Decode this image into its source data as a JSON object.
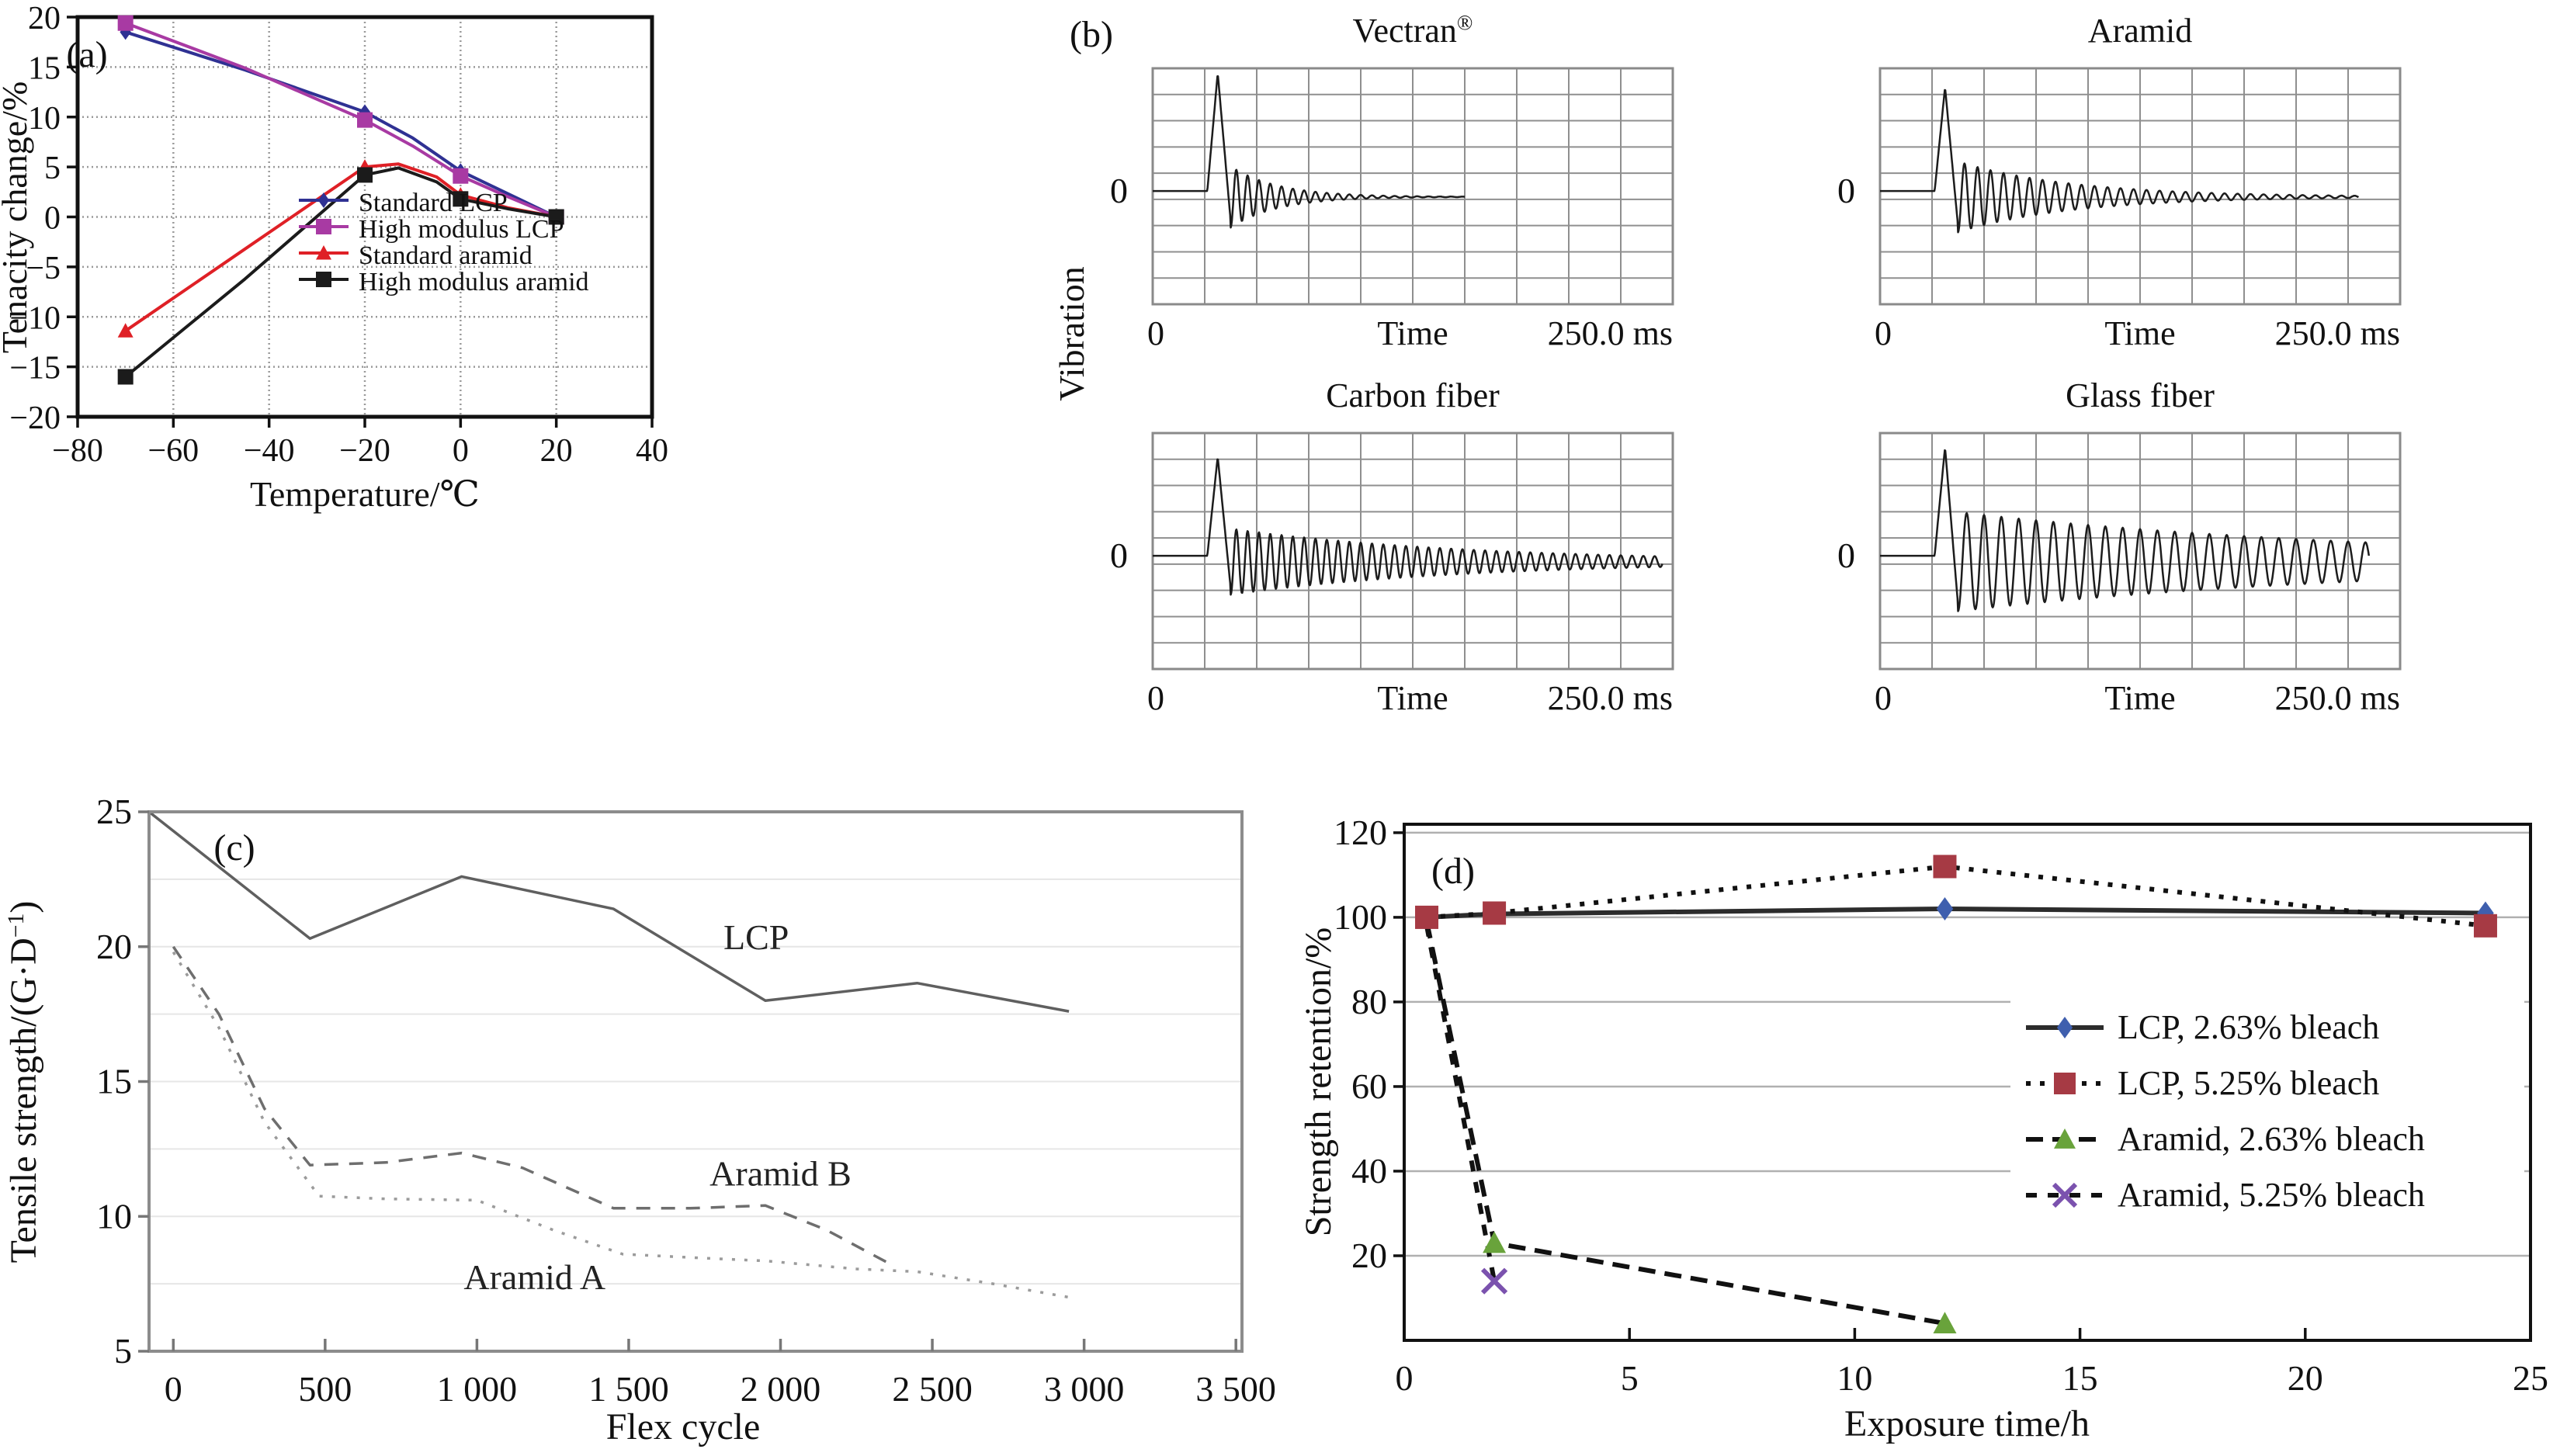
{
  "figure": {
    "background": "#ffffff"
  },
  "chart_data": [
    {
      "id": "a",
      "type": "line",
      "panel_label": "(a)",
      "xlabel": "Temperature/℃",
      "ylabel": "Tenacity change/%",
      "xlim": [
        -80,
        40
      ],
      "ylim": [
        -20,
        20
      ],
      "xticks": {
        "values": [
          -80,
          -60,
          -40,
          -20,
          0,
          20,
          40
        ],
        "labels": [
          "−80",
          "−60",
          "−40",
          "−20",
          "0",
          "20",
          "40"
        ]
      },
      "yticks": {
        "values": [
          20,
          15,
          10,
          5,
          0,
          -5,
          -10,
          -15,
          -20
        ],
        "labels": [
          "20",
          "15",
          "10",
          "5",
          "0",
          "−5",
          "−10",
          "−15",
          "−20"
        ]
      },
      "grid": "both",
      "legend_position": "inside-bottom-right",
      "series": [
        {
          "name": "Standard LCP",
          "color": "#2f3193",
          "marker": "diamond",
          "dash": "solid",
          "line": [
            [
              -70,
              18.5
            ],
            [
              -45,
              14.7
            ],
            [
              -20,
              10.5
            ],
            [
              -10,
              7.9
            ],
            [
              0,
              4.6
            ],
            [
              10,
              2.3
            ],
            [
              20,
              0
            ]
          ],
          "markers": [
            [
              -70,
              18.5
            ],
            [
              -20,
              10.5
            ],
            [
              0,
              4.6
            ],
            [
              20,
              0
            ]
          ]
        },
        {
          "name": "High modulus LCP",
          "color": "#a83aa3",
          "marker": "square",
          "dash": "solid",
          "line": [
            [
              -70,
              19.4
            ],
            [
              -45,
              14.9
            ],
            [
              -20,
              9.7
            ],
            [
              -10,
              7.1
            ],
            [
              0,
              4.1
            ],
            [
              10,
              2.0
            ],
            [
              20,
              0
            ]
          ],
          "markers": [
            [
              -70,
              19.4
            ],
            [
              -20,
              9.7
            ],
            [
              0,
              4.1
            ],
            [
              20,
              0
            ]
          ]
        },
        {
          "name": "Standard aramid",
          "color": "#df2026",
          "marker": "triangle",
          "dash": "solid",
          "line": [
            [
              -70,
              -11.4
            ],
            [
              -45,
              -3.2
            ],
            [
              -20,
              5.0
            ],
            [
              -13,
              5.3
            ],
            [
              -5,
              4.0
            ],
            [
              0,
              2.2
            ],
            [
              10,
              0.9
            ],
            [
              20,
              0
            ]
          ],
          "markers": [
            [
              -70,
              -11.4
            ],
            [
              -20,
              5.0
            ],
            [
              0,
              2.2
            ],
            [
              20,
              0
            ]
          ]
        },
        {
          "name": "High modulus aramid",
          "color": "#1b1b1b",
          "marker": "square",
          "dash": "solid",
          "line": [
            [
              -70,
              -16.0
            ],
            [
              -45,
              -6.2
            ],
            [
              -20,
              4.2
            ],
            [
              -13,
              4.9
            ],
            [
              -5,
              3.5
            ],
            [
              0,
              1.8
            ],
            [
              10,
              0.8
            ],
            [
              20,
              0
            ]
          ],
          "markers": [
            [
              -70,
              -16.0
            ],
            [
              -20,
              4.2
            ],
            [
              0,
              1.8
            ],
            [
              20,
              0
            ]
          ]
        }
      ]
    },
    {
      "id": "b",
      "type": "oscilloscope",
      "panel_label": "(b)",
      "ylabel": "Vibration",
      "time_start_label": "0",
      "time_label": "Time",
      "time_end_label": "250.0 ms",
      "zero_label": "0",
      "grid": {
        "cols": 10,
        "rows": 9
      },
      "subplots": [
        {
          "title": "Vectran",
          "title_sup": "®",
          "waveform": {
            "spike": 0.5,
            "amp": 0.13,
            "freq": 46,
            "decay": 11,
            "end": 0.6
          }
        },
        {
          "title": "Aramid",
          "title_sup": "",
          "waveform": {
            "spike": 0.44,
            "amp": 0.15,
            "freq": 40,
            "decay": 4.5,
            "end": 0.92
          }
        },
        {
          "title": "Carbon fiber",
          "title_sup": "",
          "waveform": {
            "spike": 0.42,
            "amp": 0.14,
            "freq": 46,
            "decay": 2.2,
            "end": 0.98
          }
        },
        {
          "title": "Glass fiber",
          "title_sup": "",
          "waveform": {
            "spike": 0.46,
            "amp": 0.21,
            "freq": 30,
            "decay": 1.2,
            "end": 0.94
          }
        }
      ]
    },
    {
      "id": "c",
      "type": "line",
      "panel_label": "(c)",
      "xlabel": "Flex cycle",
      "ylabel_pre": "Tensile strength/(G·D",
      "ylabel_sup": "−1",
      "ylabel_post": ")",
      "xlim": [
        -80,
        3520
      ],
      "ylim": [
        5,
        25
      ],
      "xticks": {
        "values": [
          0,
          500,
          1000,
          1500,
          2000,
          2500,
          3000,
          3500
        ],
        "labels": [
          "0",
          "500",
          "1 000",
          "1 500",
          "2 000",
          "2 500",
          "3 000",
          "3 500"
        ]
      },
      "yticks": {
        "values": [
          25,
          20,
          15,
          10,
          5
        ],
        "labels": [
          "25",
          "20",
          "15",
          "10",
          "5"
        ]
      },
      "minor_hgrid": [
        7.5,
        10,
        12.5,
        15,
        17.5,
        20,
        22.5
      ],
      "series": [
        {
          "name": "LCP",
          "color": "#5f5f5f",
          "marker": "none",
          "dash": "solid",
          "line": [
            [
              -80,
              25
            ],
            [
              450,
              20.3
            ],
            [
              950,
              22.6
            ],
            [
              1450,
              21.4
            ],
            [
              1950,
              18.0
            ],
            [
              2450,
              18.65
            ],
            [
              2950,
              17.6
            ]
          ],
          "markers": []
        },
        {
          "name": "Aramid B",
          "color": "#6e6e6e",
          "marker": "none",
          "dash": "18 14",
          "line": [
            [
              0,
              20
            ],
            [
              150,
              17.5
            ],
            [
              300,
              14.0
            ],
            [
              450,
              11.9
            ],
            [
              700,
              12.0
            ],
            [
              950,
              12.35
            ],
            [
              1150,
              11.8
            ],
            [
              1450,
              10.3
            ],
            [
              1700,
              10.3
            ],
            [
              1950,
              10.4
            ],
            [
              2150,
              9.5
            ],
            [
              2350,
              8.3
            ]
          ],
          "markers": []
        },
        {
          "name": "Aramid A",
          "color": "#9b9b9b",
          "marker": "none",
          "dash": "4 12",
          "line": [
            [
              0,
              19.8
            ],
            [
              150,
              17.0
            ],
            [
              300,
              13.5
            ],
            [
              480,
              10.75
            ],
            [
              700,
              10.65
            ],
            [
              1000,
              10.6
            ],
            [
              1250,
              9.5
            ],
            [
              1480,
              8.6
            ],
            [
              1750,
              8.45
            ],
            [
              1950,
              8.35
            ],
            [
              2250,
              8.05
            ],
            [
              2450,
              7.95
            ],
            [
              2700,
              7.5
            ],
            [
              2950,
              7.0
            ]
          ],
          "markers": []
        }
      ],
      "annotations": [
        {
          "text": "LCP",
          "x": 1920,
          "y": 19.9
        },
        {
          "text": "Aramid B",
          "x": 2000,
          "y": 11.15
        },
        {
          "text": "Aramid A",
          "x": 1190,
          "y": 7.3
        }
      ]
    },
    {
      "id": "d",
      "type": "line",
      "panel_label": "(d)",
      "xlabel": "Exposure time/h",
      "ylabel": "Strength retention/%",
      "xlim": [
        0,
        25
      ],
      "ylim": [
        0,
        122
      ],
      "xticks": {
        "values": [
          0,
          5,
          10,
          15,
          20,
          25
        ],
        "labels": [
          "0",
          "5",
          "10",
          "15",
          "20",
          "25"
        ]
      },
      "yticks": {
        "values": [
          120,
          100,
          80,
          60,
          40,
          20
        ],
        "labels": [
          "120",
          "100",
          "80",
          "60",
          "40",
          "20"
        ]
      },
      "grid": "horizontal",
      "legend_position": "inside-right",
      "series": [
        {
          "name": "LCP, 2.63% bleach",
          "color": "#2c2c2c",
          "marker": "diamond",
          "marker_color": "#3f5fae",
          "dash": "solid",
          "line": [
            [
              0.5,
              100
            ],
            [
              2,
              100.8
            ],
            [
              12,
              102
            ],
            [
              24,
              101
            ]
          ],
          "markers": [
            [
              0.5,
              100
            ],
            [
              12,
              102
            ],
            [
              24,
              101
            ]
          ]
        },
        {
          "name": "LCP, 5.25% bleach",
          "color": "#111111",
          "marker": "square",
          "marker_color": "#a63a44",
          "dash": "6 12",
          "line": [
            [
              0.5,
              100
            ],
            [
              2,
              101
            ],
            [
              12,
              112
            ],
            [
              24,
              98
            ]
          ],
          "markers": [
            [
              0.5,
              100
            ],
            [
              2,
              101
            ],
            [
              12,
              112
            ],
            [
              24,
              98
            ]
          ]
        },
        {
          "name": "Aramid, 2.63% bleach",
          "color": "#111111",
          "marker": "triangle",
          "marker_color": "#69a33b",
          "dash": "22 12",
          "line": [
            [
              0.5,
              99
            ],
            [
              2,
              23
            ],
            [
              12,
              4
            ]
          ],
          "markers": [
            [
              2,
              23
            ],
            [
              12,
              4
            ]
          ]
        },
        {
          "name": "Aramid, 5.25% bleach",
          "color": "#111111",
          "marker": "xcross",
          "marker_color": "#7b52ae",
          "dash": "14 14",
          "line": [
            [
              0.5,
              98
            ],
            [
              2,
              14
            ]
          ],
          "markers": [
            [
              2,
              14
            ]
          ]
        }
      ]
    }
  ]
}
